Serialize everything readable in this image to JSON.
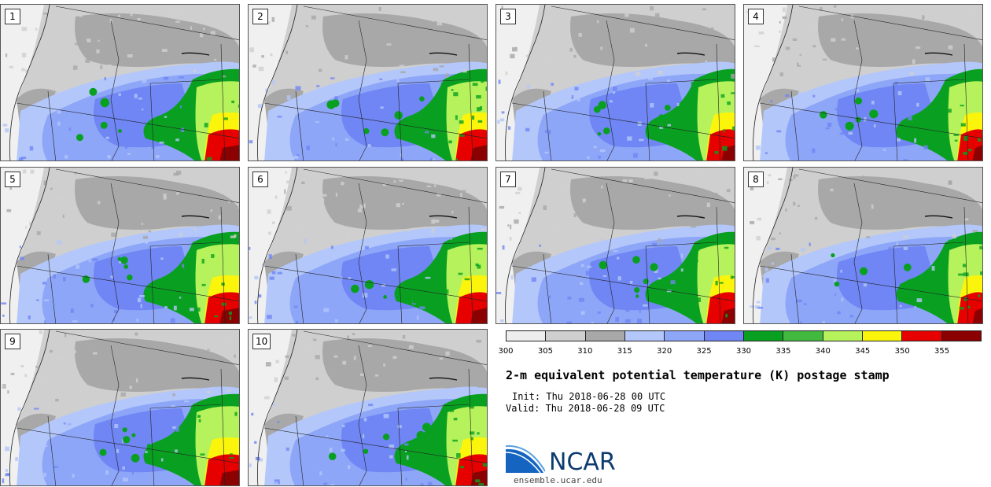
{
  "panels": [
    {
      "label": "1"
    },
    {
      "label": "2"
    },
    {
      "label": "3"
    },
    {
      "label": "4"
    },
    {
      "label": "5"
    },
    {
      "label": "6"
    },
    {
      "label": "7"
    },
    {
      "label": "8"
    },
    {
      "label": "9"
    },
    {
      "label": "10"
    }
  ],
  "colorbar": {
    "ticks": [
      "300",
      "305",
      "310",
      "315",
      "320",
      "325",
      "330",
      "335",
      "340",
      "345",
      "350",
      "355"
    ],
    "colors": [
      "#eeeeee",
      "#cfcfcf",
      "#a8a8a8",
      "#b3c7fa",
      "#8ea6f8",
      "#6f86f4",
      "#09a021",
      "#42b83f",
      "#b5f25b",
      "#fbf50c",
      "#e60000",
      "#8b0000"
    ]
  },
  "title": "2-m equivalent potential temperature (K) postage stamp",
  "init_line": "Init: Thu 2018-06-28 00 UTC",
  "valid_line": "Valid: Thu 2018-06-28 09 UTC",
  "logo": {
    "text": "NCAR",
    "url": "ensemble.ucar.edu"
  }
}
